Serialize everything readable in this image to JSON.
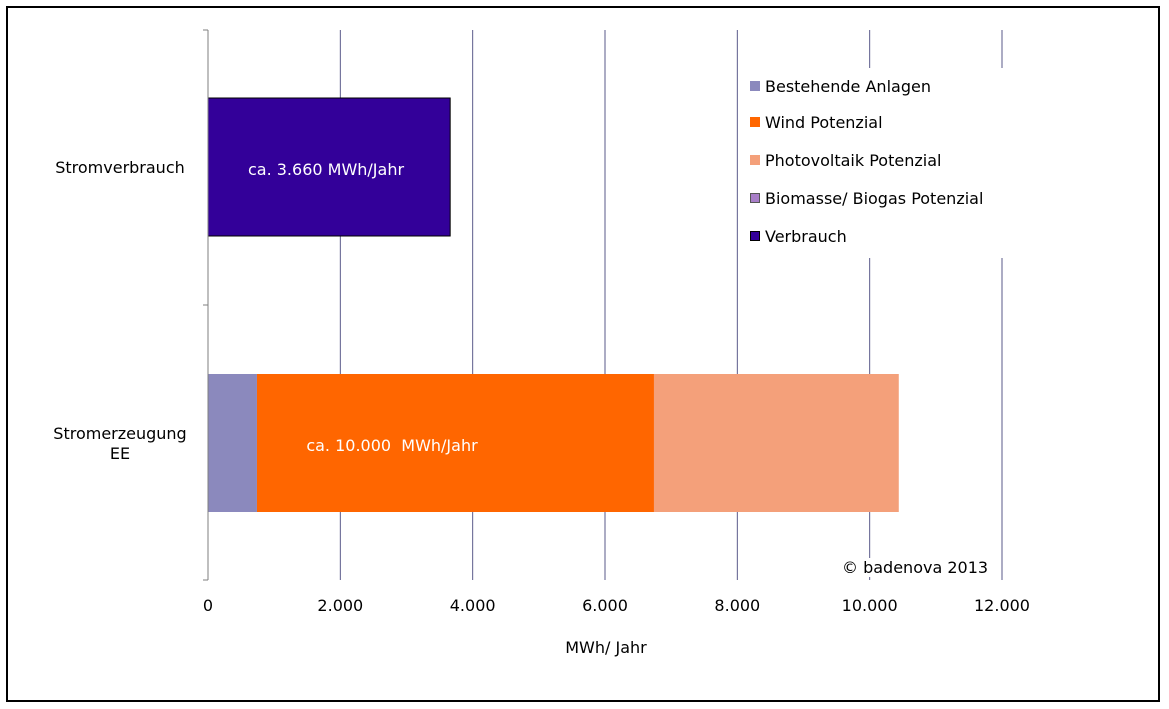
{
  "chart_data": {
    "type": "bar",
    "orientation": "horizontal",
    "stacked": true,
    "categories": [
      "Stromverbrauch",
      "Stromerzeugung EE"
    ],
    "category_label_lines": [
      [
        "Stromverbrauch"
      ],
      [
        "Stromerzeugung",
        "EE"
      ]
    ],
    "series": [
      {
        "name": "Bestehende Anlagen",
        "values": [
          0,
          740
        ],
        "color": "#8b89bd"
      },
      {
        "name": "Wind Potenzial",
        "values": [
          0,
          6000
        ],
        "color": "#ff6600"
      },
      {
        "name": "Photovoltaik Potenzial",
        "values": [
          0,
          3700
        ],
        "color": "#f4a07a"
      },
      {
        "name": "Biomasse/ Biogas Potenzial",
        "values": [
          0,
          0
        ],
        "color": "#a87ec8"
      },
      {
        "name": "Verbrauch",
        "values": [
          3660,
          0
        ],
        "color": "#330099"
      }
    ],
    "annotations": [
      "ca. 3.660 MWh/Jahr",
      "ca. 10.000  MWh/Jahr"
    ],
    "xlabel": "MWh/ Jahr",
    "xlim": [
      0,
      12000
    ],
    "xticks": [
      0,
      2000,
      4000,
      6000,
      8000,
      10000,
      12000
    ],
    "xtick_labels": [
      "0",
      "2.000",
      "4.000",
      "6.000",
      "8.000",
      "10.000",
      "12.000"
    ],
    "grid": true,
    "legend_position": "top-right",
    "copyright": "© badenova 2013"
  }
}
